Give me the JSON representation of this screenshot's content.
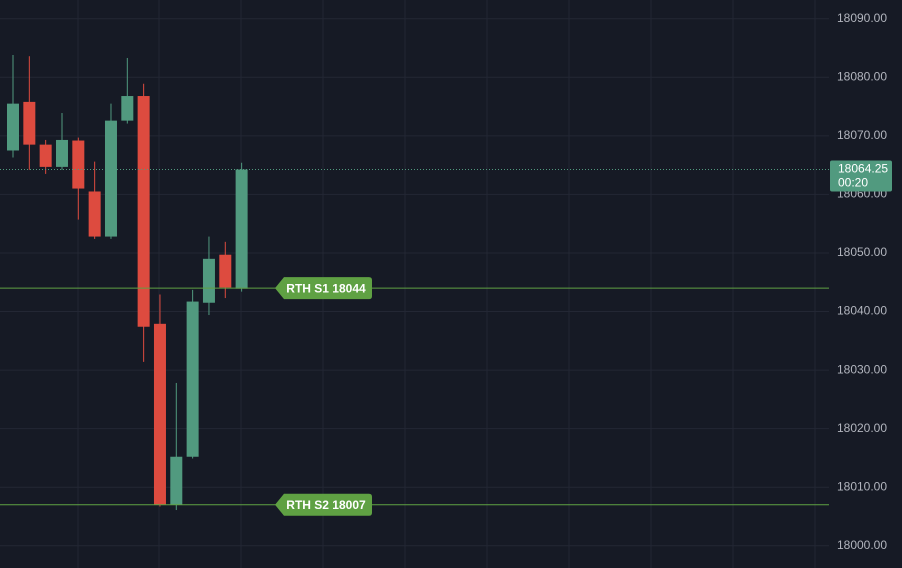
{
  "chart_data": {
    "type": "candlestick",
    "ylim": [
      17996.2,
      18093.2
    ],
    "yticks": [
      {
        "value": 18000,
        "label": "18000.00"
      },
      {
        "value": 18010,
        "label": "18010.00"
      },
      {
        "value": 18020,
        "label": "18020.00"
      },
      {
        "value": 18030,
        "label": "18030.00"
      },
      {
        "value": 18040,
        "label": "18040.00"
      },
      {
        "value": 18050,
        "label": "18050.00"
      },
      {
        "value": 18060,
        "label": "18060.00"
      },
      {
        "value": 18070,
        "label": "18070.00"
      },
      {
        "value": 18080,
        "label": "18080.00"
      },
      {
        "value": 18090,
        "label": "18090.00"
      }
    ],
    "grid": true,
    "up_color": "#519a7f",
    "down_color": "#dd4b3f",
    "open": [
      18067.5,
      18075.8,
      18068.5,
      18064.7,
      18069.2,
      18060.5,
      18052.8,
      18072.6,
      18076.8,
      18037.9,
      18007.0,
      18015.2,
      18041.5,
      18049.7,
      18043.9
    ],
    "high": [
      18083.8,
      18083.6,
      18069.3,
      18073.9,
      18069.7,
      18065.6,
      18075.5,
      18083.3,
      18078.9,
      18042.9,
      18027.8,
      18043.7,
      18052.8,
      18051.9,
      18065.4
    ],
    "low": [
      18066.3,
      18064.2,
      18063.5,
      18064.2,
      18055.7,
      18052.4,
      18052.4,
      18072.1,
      18031.4,
      18006.7,
      18006.1,
      18014.9,
      18039.4,
      18042.3,
      18043.4
    ],
    "close": [
      18075.5,
      18068.5,
      18064.7,
      18069.3,
      18061.0,
      18052.8,
      18072.6,
      18076.8,
      18037.4,
      18007.0,
      18015.2,
      18041.7,
      18049.0,
      18044.1,
      18064.25
    ],
    "last_price": 18064.25,
    "countdown": "00:20",
    "levels": [
      {
        "label": "RTH S1 18044",
        "value": 18044,
        "color": "#5fa143"
      },
      {
        "label": "RTH S2 18007",
        "value": 18007,
        "color": "#5fa143"
      }
    ]
  }
}
